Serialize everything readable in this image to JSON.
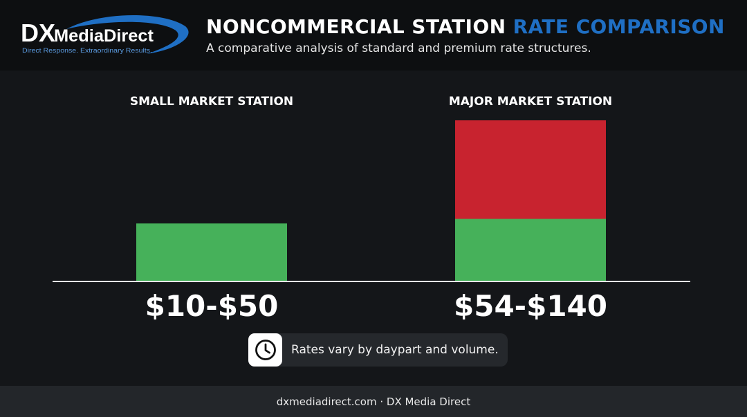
{
  "brand": {
    "logo_dx": "DX",
    "logo_name": "MediaDirect",
    "logo_tagline": "Direct Response. Extraordinary Results.",
    "logo_accent_color": "#1f6fc4"
  },
  "header": {
    "title_main": "NONCOMMERCIAL STATION",
    "title_accent": "RATE COMPARISON",
    "subtitle": "A comparative analysis of standard and premium rate structures."
  },
  "chart_data": {
    "type": "bar",
    "stacked": true,
    "categories": [
      "SMALL MARKET STATION",
      "MAJOR MARKET STATION"
    ],
    "range_labels": [
      "$10-$50",
      "$54-$140"
    ],
    "ranges": [
      [
        10,
        50
      ],
      [
        54,
        140
      ]
    ],
    "series": [
      {
        "color": "#46b15a",
        "values": [
          50,
          54
        ]
      },
      {
        "color": "#c8232f",
        "values": [
          0,
          86
        ]
      }
    ],
    "ylim": [
      0,
      140
    ],
    "grid": false
  },
  "note": {
    "icon": "clock-icon",
    "text": "Rates vary by daypart and volume."
  },
  "footer": {
    "text": "dxmediadirect.com · DX Media Direct"
  }
}
